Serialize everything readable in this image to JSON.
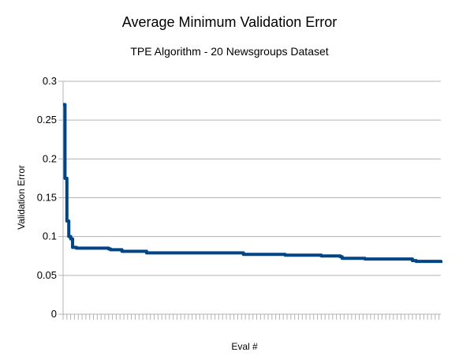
{
  "chart_data": {
    "type": "line",
    "title": "Average Minimum Validation Error",
    "subtitle": "TPE Algorithm - 20 Newsgroups Dataset",
    "xlabel": "Eval #",
    "ylabel": "Validation Error",
    "ylim": [
      0,
      0.3
    ],
    "yticks": [
      "0",
      "0.05",
      "0.1",
      "0.15",
      "0.2",
      "0.25",
      "0.3"
    ],
    "xlim": [
      1,
      200
    ],
    "x_tick_labels_shown": false,
    "grid": true,
    "legend": "none",
    "series_color": "#004586",
    "series": [
      {
        "x": [
          1,
          2,
          3,
          4,
          5,
          6,
          8,
          10,
          12,
          14,
          25,
          26,
          30,
          32,
          45,
          70,
          96,
          97,
          118,
          137,
          147,
          148,
          160,
          185,
          187,
          200
        ],
        "y": [
          0.27,
          0.175,
          0.12,
          0.1,
          0.097,
          0.086,
          0.085,
          0.085,
          0.085,
          0.085,
          0.084,
          0.083,
          0.083,
          0.081,
          0.079,
          0.079,
          0.077,
          0.077,
          0.076,
          0.075,
          0.074,
          0.072,
          0.071,
          0.069,
          0.068,
          0.066
        ]
      }
    ]
  }
}
